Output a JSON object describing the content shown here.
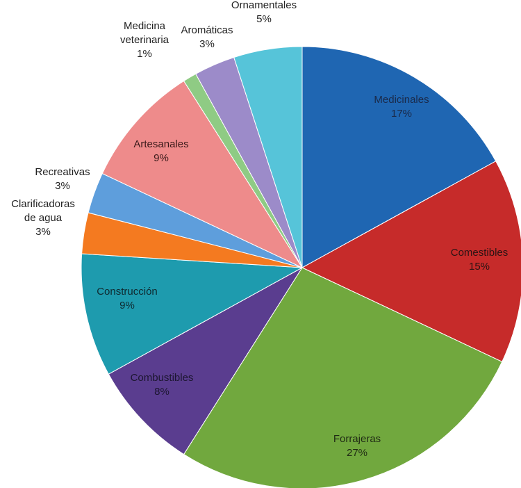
{
  "chart_data": {
    "type": "pie",
    "title": "",
    "legend": "none",
    "slices": [
      {
        "name": "Medicinales",
        "value": 17,
        "label": "17%",
        "color": "#1F66B2",
        "label_color": "#1a2a4a"
      },
      {
        "name": "Comestibles",
        "value": 15,
        "label": "15%",
        "color": "#C62B2A",
        "label_color": "#2a1414"
      },
      {
        "name": "Forrajeras",
        "value": 27,
        "label": "27%",
        "color": "#71A83E",
        "label_color": "#1f2a14"
      },
      {
        "name": "Combustibles",
        "value": 8,
        "label": "8%",
        "color": "#5A3D8F",
        "label_color": "#1c1630"
      },
      {
        "name": "Construcción",
        "value": 9,
        "label": "9%",
        "color": "#1E9BAE",
        "label_color": "#0f2a30"
      },
      {
        "name": "Clarificadoras\nde agua",
        "value": 3,
        "label": "3%",
        "color": "#F47A20",
        "label_color": "#222222"
      },
      {
        "name": "Recreativas",
        "value": 3,
        "label": "3%",
        "color": "#5E9EDC",
        "label_color": "#222222"
      },
      {
        "name": "Artesanales",
        "value": 9,
        "label": "9%",
        "color": "#EE8B8B",
        "label_color": "#3a1a1a"
      },
      {
        "name": "Medicina\nveterinaria",
        "value": 1,
        "label": "1%",
        "color": "#8FCB84",
        "label_color": "#222222"
      },
      {
        "name": "Aromáticas",
        "value": 3,
        "label": "3%",
        "color": "#9C8BC9",
        "label_color": "#222222"
      },
      {
        "name": "Ornamentales",
        "value": 5,
        "label": "5%",
        "color": "#56C4D9",
        "label_color": "#222222"
      }
    ]
  }
}
